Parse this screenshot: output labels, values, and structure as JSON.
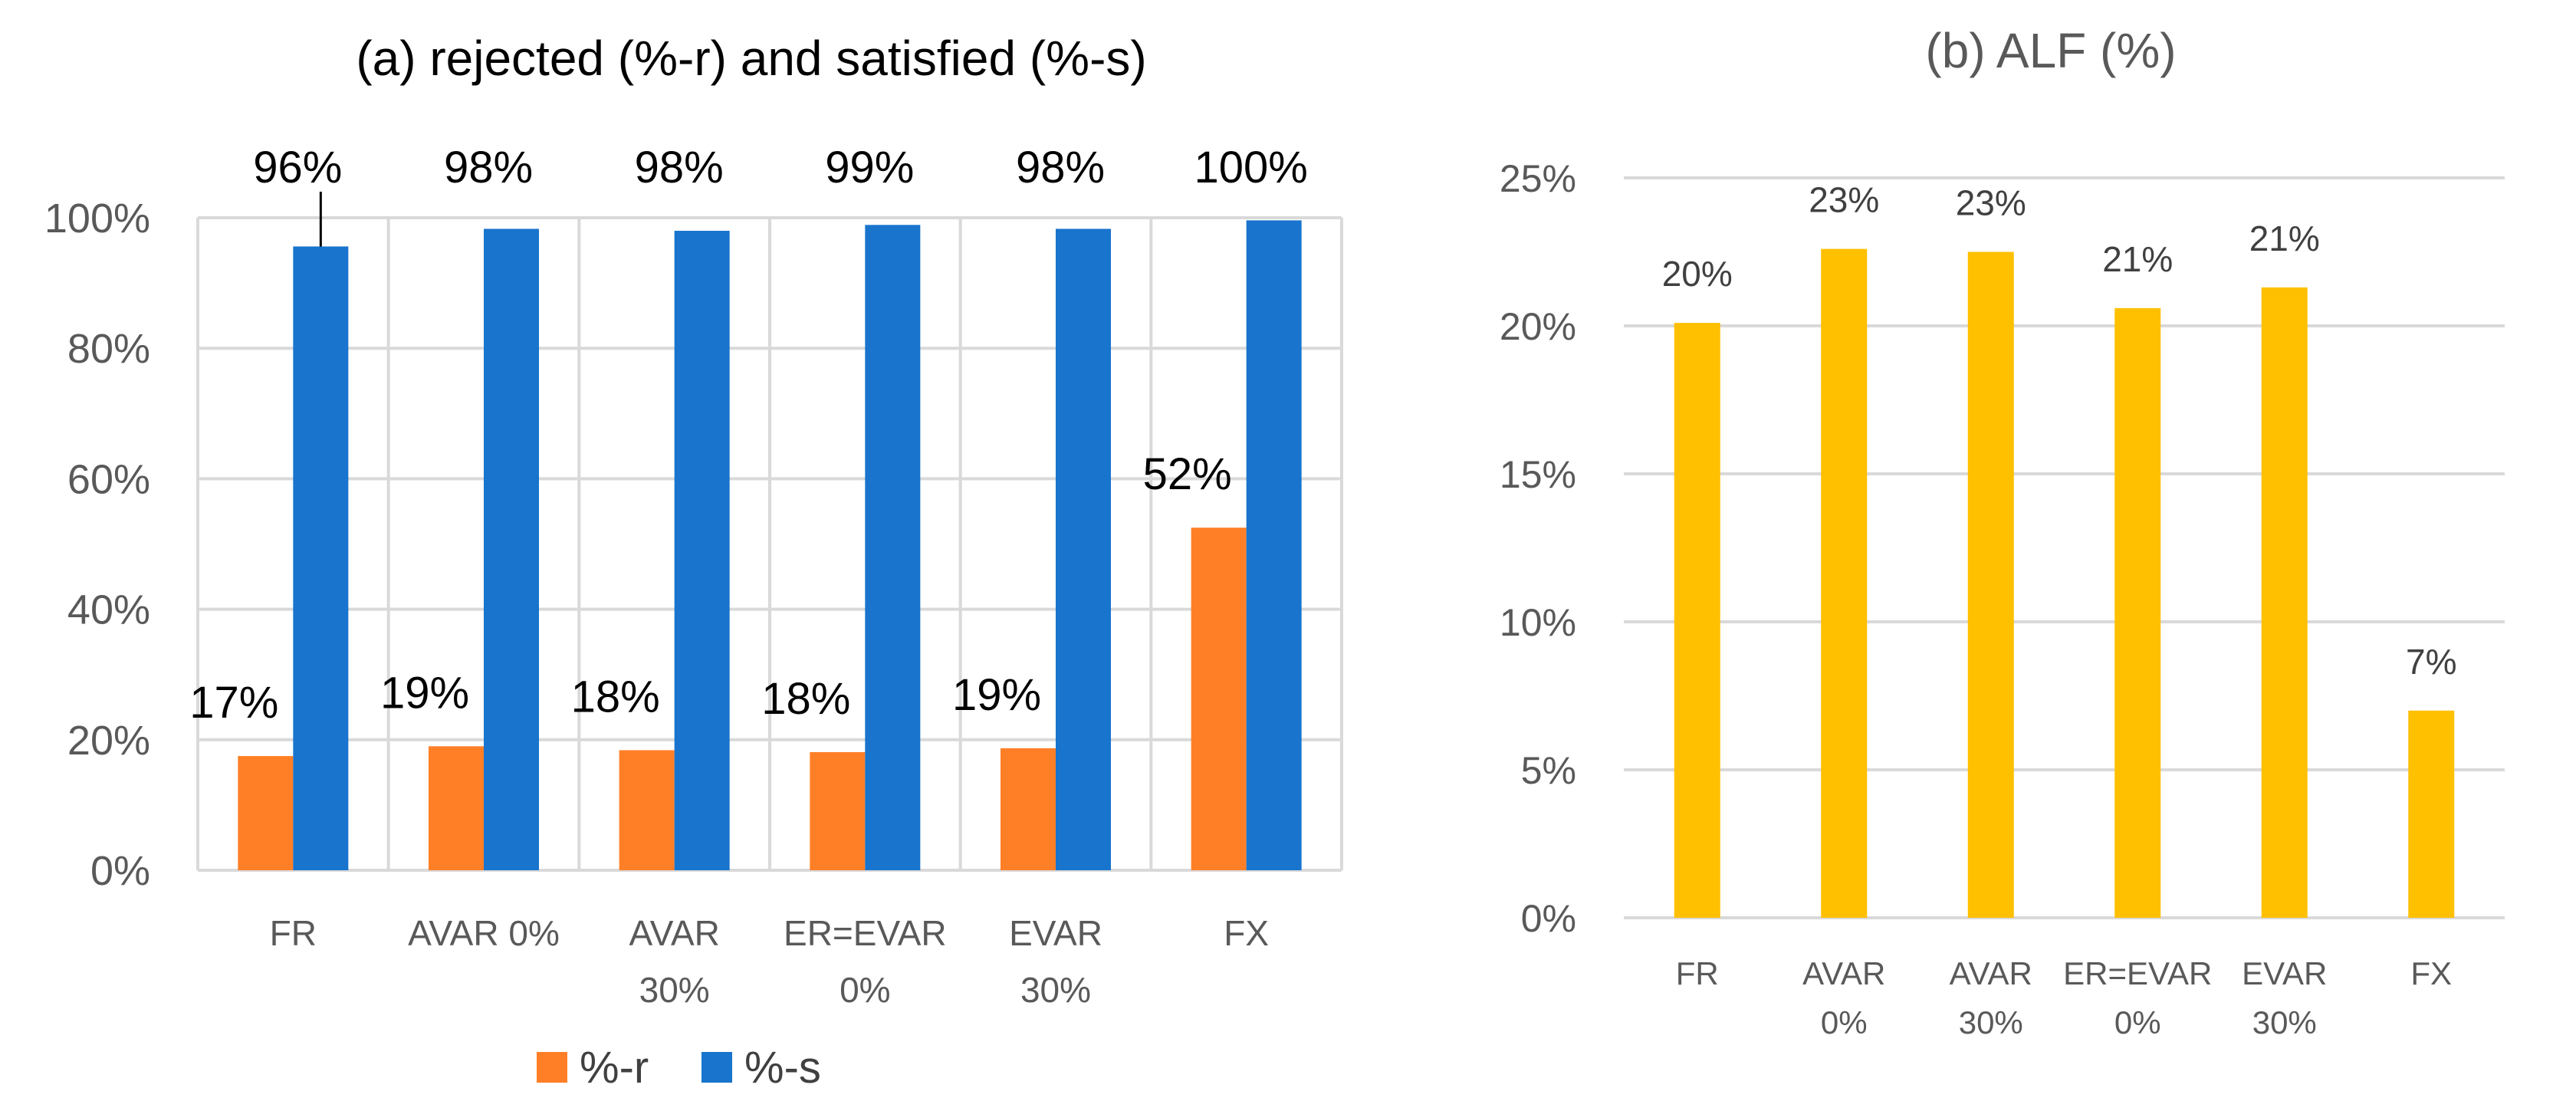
{
  "chart_data": [
    {
      "type": "bar",
      "title": "(a) rejected (%-r) and satisfied (%-s)",
      "categories": [
        [
          "FR"
        ],
        [
          "AVAR 0%"
        ],
        [
          "AVAR",
          "30%"
        ],
        [
          "ER=EVAR",
          "0%"
        ],
        [
          "EVAR",
          "30%"
        ],
        [
          "FX"
        ]
      ],
      "series": [
        {
          "name": "%-r",
          "color": "#FF7F27",
          "values": [
            17.5,
            19,
            18.4,
            18.1,
            18.7,
            52.5
          ],
          "labels": [
            "17%",
            "19%",
            "18%",
            "18%",
            "19%",
            "52%"
          ]
        },
        {
          "name": "%-s",
          "color": "#1874CD",
          "values": [
            95.6,
            98.3,
            98.0,
            98.9,
            98.3,
            99.6
          ],
          "labels": [
            "96%",
            "98%",
            "98%",
            "99%",
            "98%",
            "100%"
          ]
        }
      ],
      "yticks": [
        "0%",
        "20%",
        "40%",
        "60%",
        "80%",
        "100%"
      ],
      "ylim": [
        0,
        100
      ],
      "grid": true,
      "legend_position": "bottom"
    },
    {
      "type": "bar",
      "title": "(b) ALF (%)",
      "categories": [
        [
          "FR"
        ],
        [
          "AVAR",
          "0%"
        ],
        [
          "AVAR",
          "30%"
        ],
        [
          "ER=EVAR",
          "0%"
        ],
        [
          "EVAR",
          "30%"
        ],
        [
          "FX"
        ]
      ],
      "series": [
        {
          "name": "ALF",
          "color": "#FFC000",
          "values": [
            20.1,
            22.6,
            22.5,
            20.6,
            21.3,
            7.0
          ],
          "labels": [
            "20%",
            "23%",
            "23%",
            "21%",
            "21%",
            "7%"
          ]
        }
      ],
      "yticks": [
        "0%",
        "5%",
        "10%",
        "15%",
        "20%",
        "25%"
      ],
      "ylim": [
        0,
        25
      ],
      "grid": true
    }
  ]
}
